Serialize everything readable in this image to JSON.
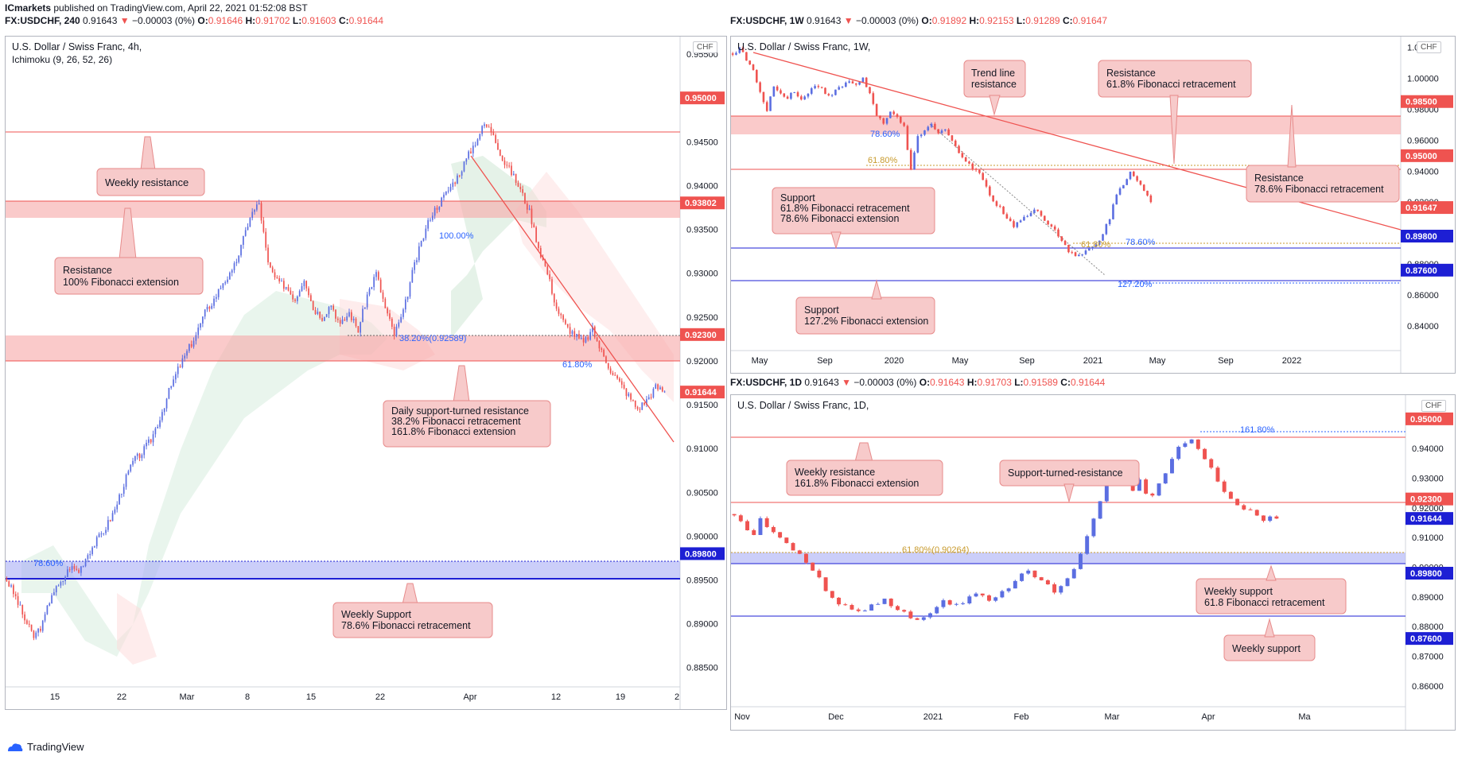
{
  "publisher": {
    "name": "ICmarkets",
    "text": "published on TradingView.com, April 22, 2021 01:52:08 BST"
  },
  "footer_logo": "TradingView",
  "colors": {
    "bull": "#5b6ee1",
    "bear": "#ef5350",
    "red": "#ef5350",
    "blue": "#1d1fd4",
    "zoneRed": "#f7a6a6",
    "zoneBlue": "#a9aef5",
    "callout": "#f7caca",
    "calloutBorder": "#e78b8b"
  },
  "charts": [
    {
      "id": "h4",
      "header": {
        "symbol": "FX:USDCHF, 240",
        "last": "0.91643",
        "change": "−0.00003 (0%)",
        "o_label": "O:",
        "o": "0.91646",
        "h_label": "H:",
        "h": "0.91702",
        "l_label": "L:",
        "l": "0.91603",
        "c_label": "C:",
        "c": "0.91644"
      },
      "title": "U.S. Dollar / Swiss Franc, 4h,",
      "subtitle": "Ichimoku (9, 26, 52, 26)",
      "currency": "CHF",
      "ticks": [
        "0.95500",
        "0.95000",
        "0.94500",
        "0.94000",
        "0.93500",
        "0.93000",
        "0.92500",
        "0.92000",
        "0.91500",
        "0.91000",
        "0.90500",
        "0.90000",
        "0.89500",
        "0.89000",
        "0.88500"
      ],
      "xticks": [
        "15",
        "22",
        "Mar",
        "8",
        "15",
        "22",
        "Apr",
        "12",
        "19",
        "2"
      ],
      "price_tags": [
        {
          "value": "0.95000",
          "color": "#ef5350"
        },
        {
          "value": "0.93802",
          "color": "#ef5350"
        },
        {
          "value": "0.92300",
          "color": "#ef5350"
        },
        {
          "value": "0.91644",
          "color": "#ef5350"
        },
        {
          "value": "0.89800",
          "color": "#1d1fd4"
        }
      ],
      "fib_labels": [
        "100.00%",
        "38.20%(0.92589)",
        "61.80%",
        "78.60%"
      ],
      "callouts": [
        {
          "lines": [
            "Weekly resistance"
          ]
        },
        {
          "lines": [
            "Resistance",
            "100% Fibonacci extension"
          ]
        },
        {
          "lines": [
            "Daily support-turned resistance",
            "38.2% Fibonacci retracement",
            "161.8% Fibonacci extension"
          ]
        },
        {
          "lines": [
            "Weekly Support",
            "78.6% Fibonacci retracement"
          ]
        }
      ]
    },
    {
      "id": "w1",
      "header": {
        "symbol": "FX:USDCHF, 1W",
        "last": "0.91643",
        "change": "−0.00003 (0%)",
        "o_label": "O:",
        "o": "0.91892",
        "h_label": "H:",
        "h": "0.92153",
        "l_label": "L:",
        "l": "0.91289",
        "c_label": "C:",
        "c": "0.91647"
      },
      "title": "U.S. Dollar / Swiss Franc, 1W,",
      "currency": "CHF",
      "ticks": [
        "1.02000",
        "1.00000",
        "0.98000",
        "0.96000",
        "0.94000",
        "0.92000",
        "0.90000",
        "0.88000",
        "0.86000",
        "0.84000"
      ],
      "xticks": [
        "May",
        "Sep",
        "2020",
        "May",
        "Sep",
        "2021",
        "May",
        "Sep",
        "2022"
      ],
      "price_tags": [
        {
          "value": "0.98500",
          "color": "#ef5350"
        },
        {
          "value": "0.95000",
          "color": "#ef5350"
        },
        {
          "value": "0.91647",
          "color": "#ef5350"
        },
        {
          "value": "0.89800",
          "color": "#1d1fd4"
        },
        {
          "value": "0.87600",
          "color": "#1d1fd4"
        }
      ],
      "fib_labels": [
        "78.60%",
        "61.80%",
        "61.80%",
        "78.60%",
        "127.20%"
      ],
      "callouts": [
        {
          "lines": [
            "Trend line",
            "resistance"
          ]
        },
        {
          "lines": [
            "Resistance",
            "61.8% Fibonacci retracement"
          ]
        },
        {
          "lines": [
            "Support",
            "61.8% Fibonacci retracement",
            "78.6% Fibonacci extension"
          ]
        },
        {
          "lines": [
            "Resistance",
            "78.6% Fibonacci retracement"
          ]
        },
        {
          "lines": [
            "Support",
            "127.2% Fibonacci extension"
          ]
        }
      ]
    },
    {
      "id": "d1",
      "header": {
        "symbol": "FX:USDCHF, 1D",
        "last": "0.91643",
        "change": "−0.00003 (0%)",
        "o_label": "O:",
        "o": "0.91643",
        "h_label": "H:",
        "h": "0.91703",
        "l_label": "L:",
        "l": "0.91589",
        "c_label": "C:",
        "c": "0.91644"
      },
      "title": "U.S. Dollar / Swiss Franc, 1D,",
      "currency": "CHF",
      "ticks": [
        "0.95000",
        "0.94000",
        "0.93000",
        "0.92000",
        "0.91000",
        "0.90000",
        "0.89000",
        "0.88000",
        "0.87000",
        "0.86000"
      ],
      "xticks": [
        "Nov",
        "Dec",
        "2021",
        "Feb",
        "Mar",
        "Apr",
        "Ma"
      ],
      "price_tags": [
        {
          "value": "0.95000",
          "color": "#ef5350"
        },
        {
          "value": "0.92300",
          "color": "#ef5350"
        },
        {
          "value": "0.91644",
          "color": "#1d1fd4"
        },
        {
          "value": "0.89800",
          "color": "#1d1fd4"
        },
        {
          "value": "0.87600",
          "color": "#1d1fd4"
        }
      ],
      "fib_labels": [
        "161.80%",
        "61.80%(0.90264)"
      ],
      "callouts": [
        {
          "lines": [
            "Weekly resistance",
            "161.8% Fibonacci extension"
          ]
        },
        {
          "lines": [
            "Support-turned-resistance"
          ]
        },
        {
          "lines": [
            "Weekly support",
            "61.8 Fibonacci retracement"
          ]
        },
        {
          "lines": [
            "Weekly support"
          ]
        }
      ]
    }
  ],
  "chart_data": [
    {
      "type": "candlestick",
      "title": "U.S. Dollar / Swiss Franc, 4h,",
      "ylim": [
        0.8828,
        0.957
      ],
      "levels": [
        0.95,
        0.93802,
        0.923,
        0.898,
        0.9,
        0.92589
      ],
      "close_path": [
        0.895,
        0.893,
        0.8905,
        0.8885,
        0.89,
        0.8935,
        0.8945,
        0.8965,
        0.896,
        0.898,
        0.8995,
        0.901,
        0.903,
        0.906,
        0.9085,
        0.9095,
        0.911,
        0.9135,
        0.9165,
        0.919,
        0.921,
        0.923,
        0.9255,
        0.927,
        0.929,
        0.93,
        0.933,
        0.9365,
        0.938,
        0.931,
        0.929,
        0.9285,
        0.927,
        0.9295,
        0.926,
        0.925,
        0.9265,
        0.924,
        0.9255,
        0.9235,
        0.9275,
        0.93,
        0.926,
        0.923,
        0.9255,
        0.93,
        0.9335,
        0.9365,
        0.938,
        0.9395,
        0.941,
        0.943,
        0.945,
        0.947,
        0.946,
        0.943,
        0.9415,
        0.9395,
        0.937,
        0.933,
        0.93,
        0.926,
        0.924,
        0.923,
        0.922,
        0.9235,
        0.921,
        0.919,
        0.9175,
        0.916,
        0.9145,
        0.9155,
        0.917,
        0.9165
      ]
    },
    {
      "type": "candlestick",
      "title": "U.S. Dollar / Swiss Franc, 1W,",
      "ylim": [
        0.824,
        1.027
      ],
      "levels": [
        0.985,
        0.95,
        0.898,
        0.876
      ],
      "close_path": [
        1.015,
        1.02,
        1.012,
        1.005,
        0.99,
        0.98,
        0.995,
        0.99,
        0.988,
        0.992,
        0.986,
        0.99,
        0.996,
        0.994,
        0.988,
        0.992,
        0.995,
        0.998,
        0.996,
        1.0,
        0.99,
        0.976,
        0.97,
        0.978,
        0.976,
        0.968,
        0.94,
        0.962,
        0.966,
        0.97,
        0.964,
        0.968,
        0.96,
        0.952,
        0.946,
        0.942,
        0.94,
        0.93,
        0.92,
        0.916,
        0.91,
        0.905,
        0.908,
        0.912,
        0.915,
        0.912,
        0.906,
        0.902,
        0.896,
        0.888,
        0.885,
        0.886,
        0.89,
        0.892,
        0.9,
        0.91,
        0.925,
        0.932,
        0.94,
        0.935,
        0.927,
        0.92
      ]
    },
    {
      "type": "candlestick",
      "title": "U.S. Dollar / Swiss Franc, 1D,",
      "ylim": [
        0.853,
        0.958
      ],
      "levels": [
        0.95,
        0.923,
        0.898,
        0.876,
        0.90264
      ],
      "close_path": [
        0.917,
        0.915,
        0.913,
        0.911,
        0.916,
        0.914,
        0.912,
        0.91,
        0.908,
        0.906,
        0.905,
        0.901,
        0.899,
        0.897,
        0.892,
        0.89,
        0.888,
        0.887,
        0.886,
        0.8855,
        0.886,
        0.887,
        0.888,
        0.889,
        0.887,
        0.886,
        0.885,
        0.883,
        0.882,
        0.883,
        0.885,
        0.887,
        0.889,
        0.888,
        0.887,
        0.888,
        0.89,
        0.891,
        0.89,
        0.889,
        0.89,
        0.892,
        0.893,
        0.895,
        0.898,
        0.899,
        0.897,
        0.896,
        0.894,
        0.892,
        0.894,
        0.896,
        0.899,
        0.904,
        0.91,
        0.916,
        0.922,
        0.929,
        0.934,
        0.932,
        0.929,
        0.926,
        0.93,
        0.925,
        0.924,
        0.928,
        0.932,
        0.936,
        0.94,
        0.942,
        0.943,
        0.94,
        0.937,
        0.933,
        0.929,
        0.925,
        0.923,
        0.921,
        0.92,
        0.919,
        0.917,
        0.916,
        0.9165,
        0.9164
      ]
    }
  ]
}
